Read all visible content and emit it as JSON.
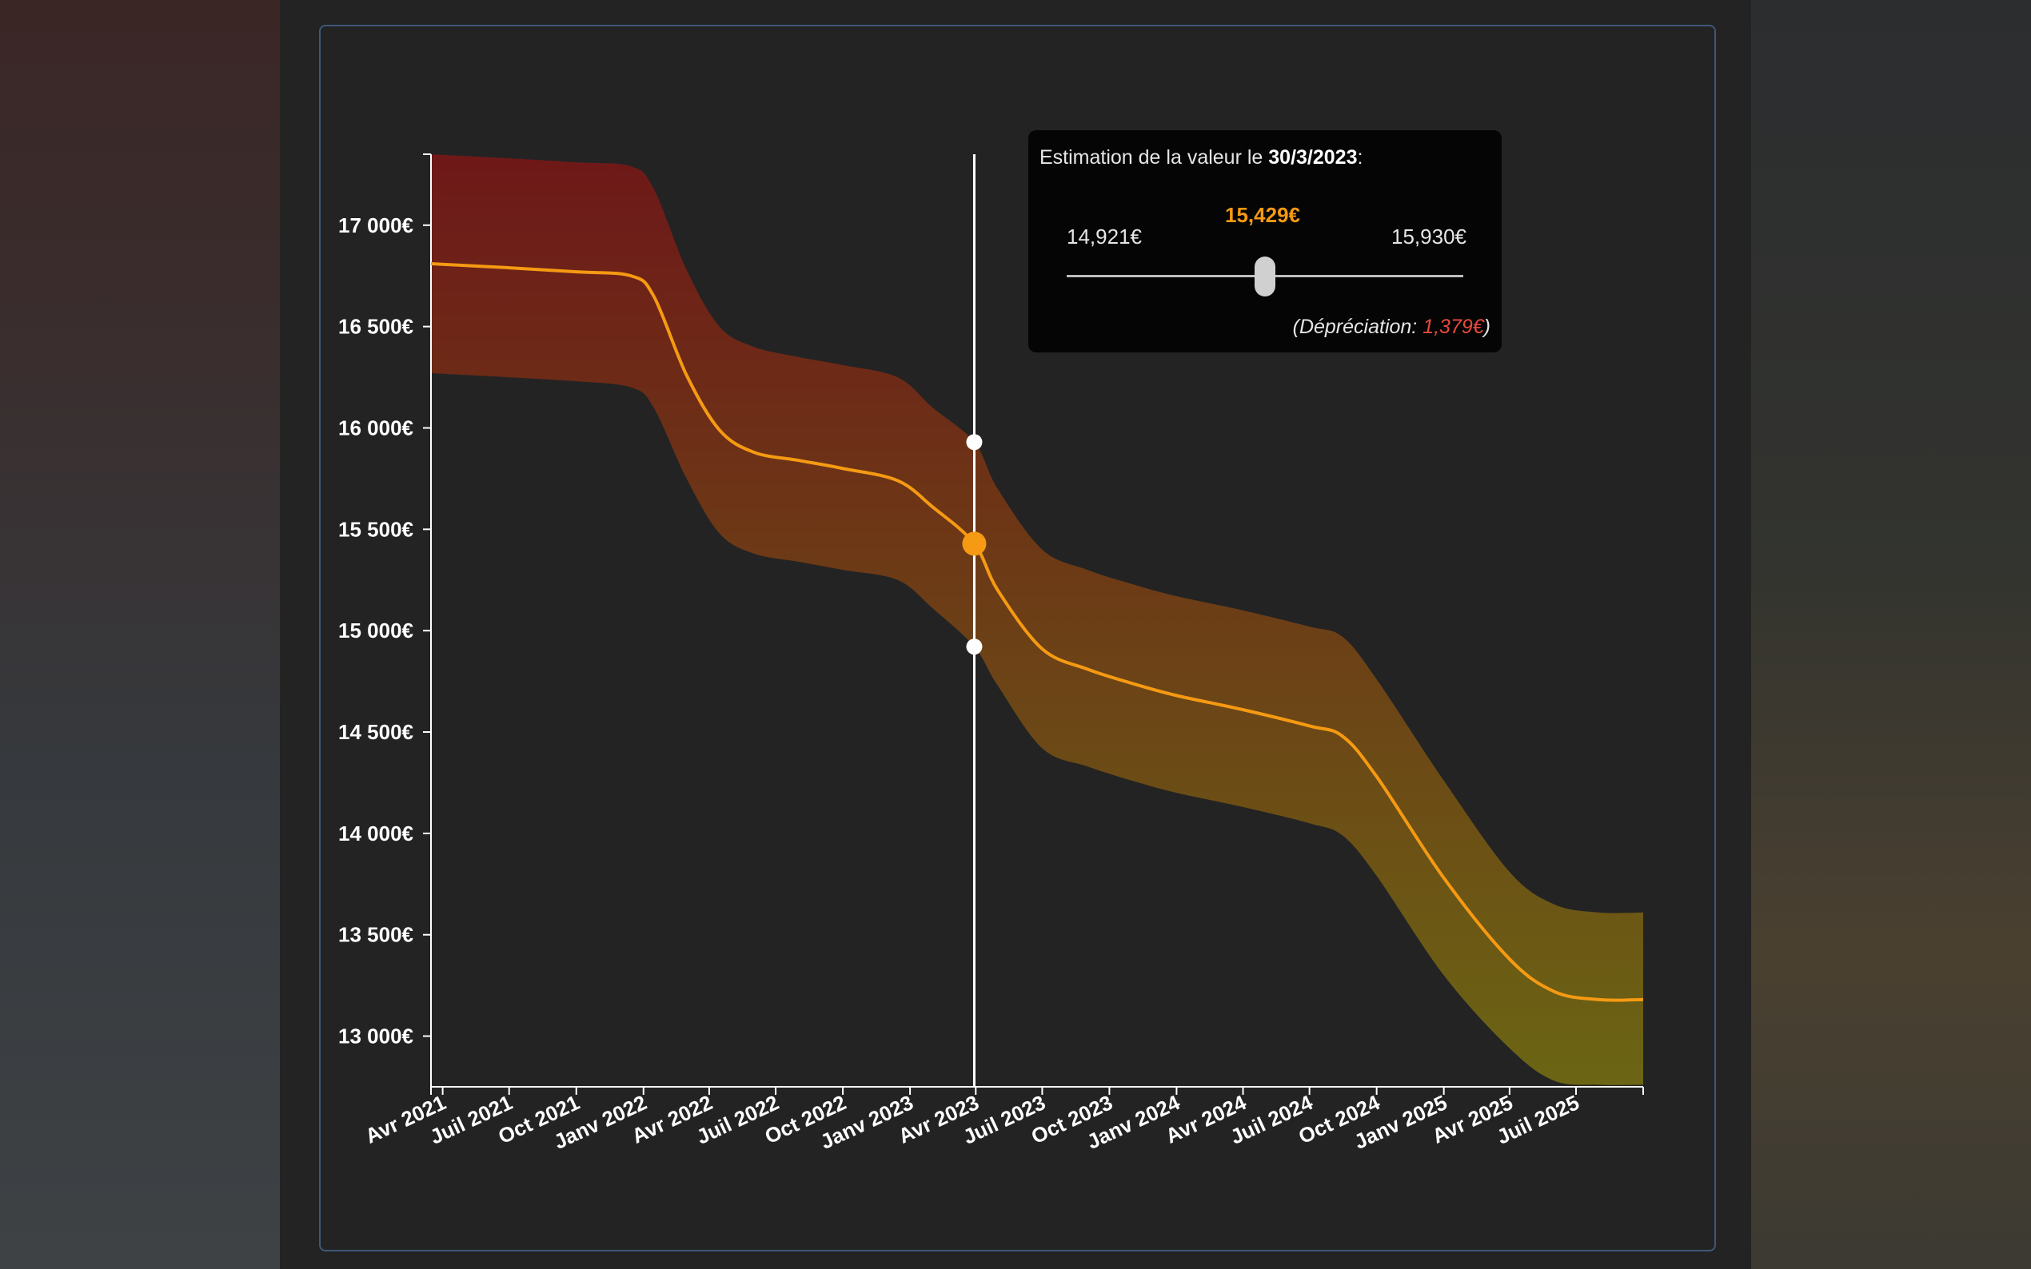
{
  "colors": {
    "line": "#f59a12",
    "band_top": "#6e1818",
    "band_bottom": "#6b6514",
    "axis": "#ffffff",
    "depreciation": "#e84a3a"
  },
  "tooltip": {
    "title_prefix": "Estimation de la valeur le ",
    "date": "30/3/2023",
    "title_suffix": ":",
    "min": "14,921€",
    "mid": "15,429€",
    "max": "15,930€",
    "slider_position": 0.5,
    "dep_prefix": "(Dépréciation: ",
    "dep_value": "1,379€",
    "dep_suffix": ")"
  },
  "chart_data": {
    "type": "area",
    "ylabel": "",
    "xlabel": "",
    "ylim": [
      12750,
      17350
    ],
    "xlim": [
      "2021-03-16",
      "2025-10-01"
    ],
    "y_ticks": [
      {
        "value": 13000,
        "label": "13 000€"
      },
      {
        "value": 13500,
        "label": "13 500€"
      },
      {
        "value": 14000,
        "label": "14 000€"
      },
      {
        "value": 14500,
        "label": "14 500€"
      },
      {
        "value": 15000,
        "label": "15 000€"
      },
      {
        "value": 15500,
        "label": "15 500€"
      },
      {
        "value": 16000,
        "label": "16 000€"
      },
      {
        "value": 16500,
        "label": "16 500€"
      },
      {
        "value": 17000,
        "label": "17 000€"
      }
    ],
    "x_ticks": [
      {
        "date": "2021-04-01",
        "label": "Avr 2021"
      },
      {
        "date": "2021-07-01",
        "label": "Juil 2021"
      },
      {
        "date": "2021-10-01",
        "label": "Oct 2021"
      },
      {
        "date": "2022-01-01",
        "label": "Janv 2022"
      },
      {
        "date": "2022-04-01",
        "label": "Avr 2022"
      },
      {
        "date": "2022-07-01",
        "label": "Juil 2022"
      },
      {
        "date": "2022-10-01",
        "label": "Oct 2022"
      },
      {
        "date": "2023-01-01",
        "label": "Janv 2023"
      },
      {
        "date": "2023-04-01",
        "label": "Avr 2023"
      },
      {
        "date": "2023-07-01",
        "label": "Juil 2023"
      },
      {
        "date": "2023-10-01",
        "label": "Oct 2023"
      },
      {
        "date": "2024-01-01",
        "label": "Janv 2024"
      },
      {
        "date": "2024-04-01",
        "label": "Avr 2024"
      },
      {
        "date": "2024-07-01",
        "label": "Juil 2024"
      },
      {
        "date": "2024-10-01",
        "label": "Oct 2024"
      },
      {
        "date": "2025-01-01",
        "label": "Janv 2025"
      },
      {
        "date": "2025-04-01",
        "label": "Avr 2025"
      },
      {
        "date": "2025-07-01",
        "label": "Juil 2025"
      }
    ],
    "series": [
      {
        "points": [
          {
            "x": "2021-03-16",
            "low": 16270,
            "mid": 16810,
            "high": 17350
          },
          {
            "x": "2021-07-01",
            "low": 16250,
            "mid": 16790,
            "high": 17330
          },
          {
            "x": "2021-10-01",
            "low": 16230,
            "mid": 16770,
            "high": 17310
          },
          {
            "x": "2021-12-15",
            "low": 16200,
            "mid": 16750,
            "high": 17290
          },
          {
            "x": "2022-01-15",
            "low": 16100,
            "mid": 16650,
            "high": 17180
          },
          {
            "x": "2022-03-01",
            "low": 15750,
            "mid": 16260,
            "high": 16780
          },
          {
            "x": "2022-04-15",
            "low": 15480,
            "mid": 15990,
            "high": 16500
          },
          {
            "x": "2022-06-01",
            "low": 15380,
            "mid": 15880,
            "high": 16400
          },
          {
            "x": "2022-08-01",
            "low": 15340,
            "mid": 15840,
            "high": 16350
          },
          {
            "x": "2022-10-01",
            "low": 15300,
            "mid": 15800,
            "high": 16310
          },
          {
            "x": "2022-12-15",
            "low": 15250,
            "mid": 15740,
            "high": 16250
          },
          {
            "x": "2023-02-01",
            "low": 15110,
            "mid": 15610,
            "high": 16100
          },
          {
            "x": "2023-03-30",
            "low": 14921,
            "mid": 15429,
            "high": 15930
          },
          {
            "x": "2023-05-01",
            "low": 14730,
            "mid": 15200,
            "high": 15700
          },
          {
            "x": "2023-07-01",
            "low": 14420,
            "mid": 14910,
            "high": 15400
          },
          {
            "x": "2023-09-01",
            "low": 14330,
            "mid": 14810,
            "high": 15300
          },
          {
            "x": "2023-11-01",
            "low": 14260,
            "mid": 14740,
            "high": 15230
          },
          {
            "x": "2024-01-01",
            "low": 14200,
            "mid": 14680,
            "high": 15170
          },
          {
            "x": "2024-04-01",
            "low": 14130,
            "mid": 14610,
            "high": 15100
          },
          {
            "x": "2024-07-01",
            "low": 14050,
            "mid": 14530,
            "high": 15020
          },
          {
            "x": "2024-08-15",
            "low": 13990,
            "mid": 14480,
            "high": 14970
          },
          {
            "x": "2024-10-01",
            "low": 13790,
            "mid": 14280,
            "high": 14760
          },
          {
            "x": "2025-01-01",
            "low": 13300,
            "mid": 13780,
            "high": 14260
          },
          {
            "x": "2025-04-01",
            "low": 12940,
            "mid": 13380,
            "high": 13810
          },
          {
            "x": "2025-06-01",
            "low": 12780,
            "mid": 13220,
            "high": 13650
          },
          {
            "x": "2025-08-01",
            "low": 12760,
            "mid": 13180,
            "high": 13610
          },
          {
            "x": "2025-10-01",
            "low": 12760,
            "mid": 13180,
            "high": 13610
          }
        ]
      }
    ],
    "marker": {
      "x": "2023-03-30",
      "low": 14921,
      "mid": 15429,
      "high": 15930
    },
    "grid": false,
    "legend": "none"
  }
}
